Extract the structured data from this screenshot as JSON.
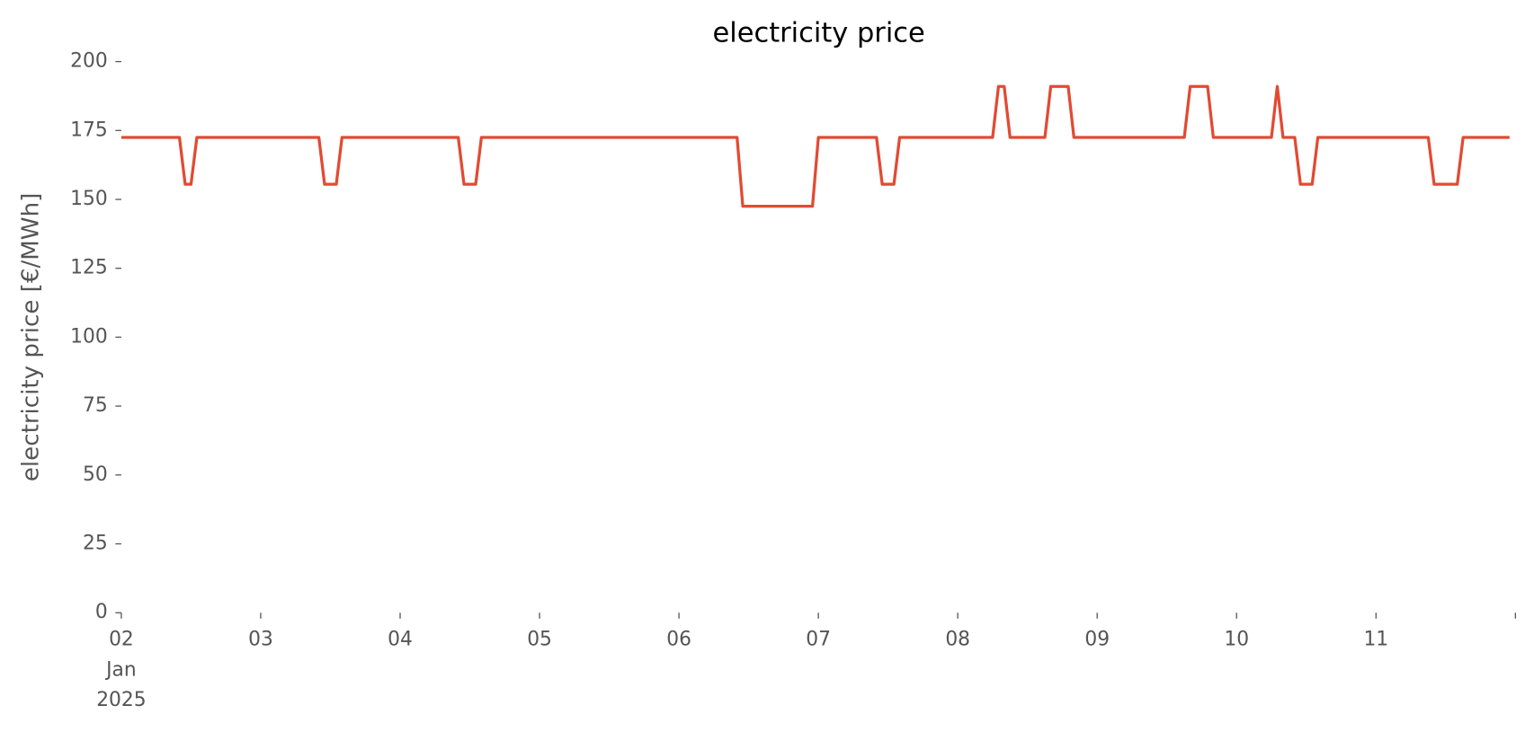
{
  "chart_data": {
    "type": "line",
    "title": "electricity price",
    "ylabel": "electricity price [€/MWh]",
    "x": [
      2.0,
      2.417,
      2.458,
      2.5,
      2.542,
      3.417,
      3.458,
      3.542,
      3.583,
      4.417,
      4.458,
      4.542,
      4.583,
      6.417,
      6.458,
      6.958,
      7.0,
      7.417,
      7.458,
      7.542,
      7.583,
      8.25,
      8.292,
      8.333,
      8.375,
      8.625,
      8.667,
      8.792,
      8.833,
      9.625,
      9.667,
      9.792,
      9.833,
      10.25,
      10.292,
      10.333,
      10.417,
      10.458,
      10.542,
      10.583,
      11.375,
      11.417,
      11.583,
      11.625,
      11.958
    ],
    "series": [
      {
        "name": "electricity price",
        "color": "#e24a33",
        "values": [
          172.5,
          172.5,
          155.5,
          155.5,
          172.5,
          172.5,
          155.5,
          155.5,
          172.5,
          172.5,
          155.5,
          155.5,
          172.5,
          172.5,
          147.5,
          147.5,
          172.5,
          172.5,
          155.5,
          155.5,
          172.5,
          172.5,
          191,
          191,
          172.5,
          172.5,
          191,
          191,
          172.5,
          172.5,
          191,
          191,
          172.5,
          172.5,
          191,
          172.5,
          172.5,
          155.5,
          155.5,
          172.5,
          172.5,
          155.5,
          155.5,
          172.5,
          172.5
        ]
      }
    ],
    "xlim": [
      2,
      12
    ],
    "xticks": [
      {
        "value": 2,
        "label": "02\nJan\n2025"
      },
      {
        "value": 3,
        "label": "03"
      },
      {
        "value": 4,
        "label": "04"
      },
      {
        "value": 5,
        "label": "05"
      },
      {
        "value": 6,
        "label": "06"
      },
      {
        "value": 7,
        "label": "07"
      },
      {
        "value": 8,
        "label": "08"
      },
      {
        "value": 9,
        "label": "09"
      },
      {
        "value": 10,
        "label": "10"
      },
      {
        "value": 11,
        "label": "11"
      },
      {
        "value": 12,
        "label": null
      }
    ],
    "ylim": [
      0,
      200
    ],
    "yticks": [
      0,
      25,
      50,
      75,
      100,
      125,
      150,
      175,
      200
    ],
    "grid": false
  }
}
